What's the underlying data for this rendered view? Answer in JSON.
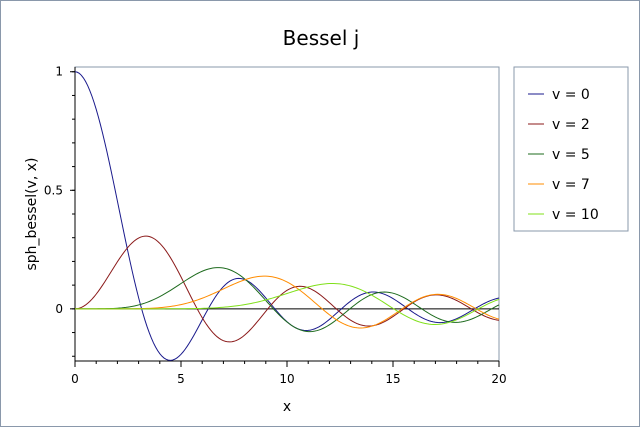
{
  "chart_data": {
    "type": "line",
    "title": "Bessel j",
    "xlabel": "x",
    "ylabel": "sph_bessel(v, x)",
    "xlim": [
      0,
      20
    ],
    "ylim": [
      -0.22,
      1.02
    ],
    "x_ticks": [
      "0",
      "5",
      "10",
      "15",
      "20"
    ],
    "y_ticks": [
      "0",
      "0.5",
      "1"
    ],
    "grid": false,
    "legend_position": "right",
    "sample_step": 0.1,
    "series": [
      {
        "name": "v = 0",
        "order": 0,
        "color": "#1a1a8c"
      },
      {
        "name": "v = 2",
        "order": 2,
        "color": "#8b1a1a"
      },
      {
        "name": "v = 5",
        "order": 5,
        "color": "#1e6b1e"
      },
      {
        "name": "v = 7",
        "order": 7,
        "color": "#ff8c00"
      },
      {
        "name": "v = 10",
        "order": 10,
        "color": "#80e01a"
      }
    ]
  }
}
